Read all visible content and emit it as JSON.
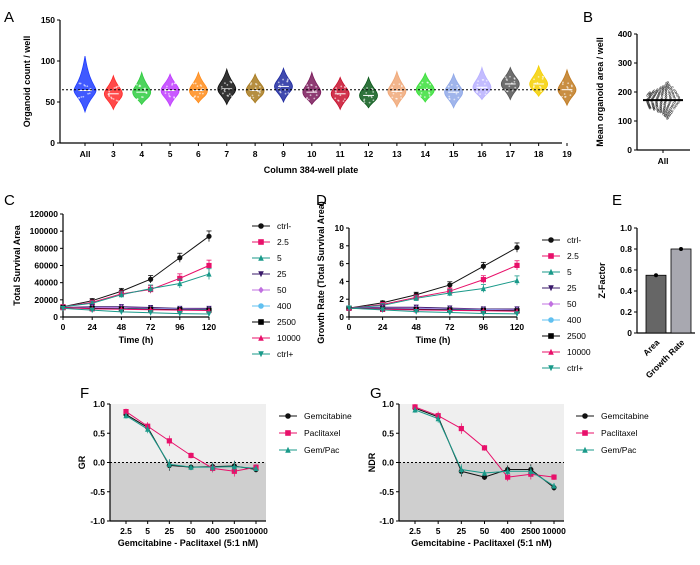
{
  "figure": {
    "panel_labels": [
      "A",
      "B",
      "C",
      "D",
      "E",
      "F",
      "G"
    ]
  },
  "chart_data": [
    {
      "id": "A",
      "type": "violin",
      "xlabel": "Column 384-well plate",
      "ylabel": "Organoid count / well",
      "ylim": [
        0,
        150
      ],
      "yticks": [
        0,
        50,
        100,
        150
      ],
      "reference_line": 65,
      "categories": [
        "All",
        "3",
        "4",
        "5",
        "6",
        "7",
        "8",
        "9",
        "10",
        "11",
        "12",
        "13",
        "14",
        "15",
        "16",
        "17",
        "18",
        "19"
      ],
      "medians": [
        64,
        60,
        62,
        64,
        64,
        66,
        64,
        69,
        62,
        60,
        58,
        63,
        65,
        62,
        68,
        72,
        72,
        65
      ],
      "colors": [
        "#1f3cff",
        "#ff2a2a",
        "#2ecc40",
        "#c03cff",
        "#ff8c1a",
        "#111111",
        "#a87a1e",
        "#1e2aa0",
        "#7a1a5a",
        "#c8102e",
        "#0a5a1a",
        "#f0a878",
        "#3adf3a",
        "#8fa8e8",
        "#b8b0ff",
        "#555555",
        "#f5d000",
        "#c07a20"
      ]
    },
    {
      "id": "B",
      "type": "scatter",
      "xlabel": "",
      "ylabel": "Mean organoid area / well",
      "ylim": [
        0,
        400
      ],
      "yticks": [
        0,
        100,
        200,
        300,
        400
      ],
      "categories": [
        "All"
      ],
      "median": 172
    },
    {
      "id": "C",
      "type": "line",
      "xlabel": "Time (h)",
      "ylabel": "Total Survival Area",
      "x": [
        0,
        24,
        48,
        72,
        96,
        120
      ],
      "ylim": [
        0,
        120000
      ],
      "yticks": [
        0,
        20000,
        40000,
        60000,
        80000,
        100000,
        120000
      ],
      "ytick_labels": [
        "0",
        "20000",
        "40000",
        "60000",
        "80000",
        "100000",
        "120000"
      ],
      "series": [
        {
          "name": "ctrl-",
          "color": "#111111",
          "marker": "circle",
          "values": [
            12000,
            19000,
            30000,
            44000,
            69000,
            94000
          ]
        },
        {
          "name": "2.5",
          "color": "#e8106a",
          "marker": "square",
          "values": [
            12000,
            17000,
            27000,
            32000,
            45000,
            60000
          ]
        },
        {
          "name": "5",
          "color": "#1a9a8a",
          "marker": "triangle",
          "values": [
            12000,
            16000,
            26000,
            33000,
            39000,
            50000
          ]
        },
        {
          "name": "25",
          "color": "#3a1a6a",
          "marker": "tri-down",
          "values": [
            11000,
            12000,
            12000,
            11000,
            10000,
            10000
          ]
        },
        {
          "name": "50",
          "color": "#c070e0",
          "marker": "diamond",
          "values": [
            11000,
            11000,
            11000,
            10000,
            9500,
            9000
          ]
        },
        {
          "name": "400",
          "color": "#60c0f0",
          "marker": "circle",
          "values": [
            11000,
            10000,
            10000,
            9500,
            9000,
            8500
          ]
        },
        {
          "name": "2500",
          "color": "#000000",
          "marker": "square",
          "values": [
            11000,
            10000,
            9500,
            9000,
            8500,
            8000
          ]
        },
        {
          "name": "10000",
          "color": "#e8106a",
          "marker": "triangle",
          "values": [
            11000,
            9500,
            9000,
            8500,
            8000,
            7500
          ]
        },
        {
          "name": "ctrl+",
          "color": "#1a9a8a",
          "marker": "tri-down",
          "values": [
            10000,
            8000,
            6000,
            5000,
            4000,
            3500
          ]
        }
      ]
    },
    {
      "id": "D",
      "type": "line",
      "xlabel": "Time (h)",
      "ylabel": "Growth Rate (Total Survival Area)",
      "x": [
        0,
        24,
        48,
        72,
        96,
        120
      ],
      "ylim": [
        0,
        10
      ],
      "yticks": [
        0,
        2,
        4,
        6,
        8,
        10
      ],
      "ytick_labels": [
        "0",
        "2",
        "4",
        "6",
        "8",
        "10"
      ],
      "series": [
        {
          "name": "ctrl-",
          "color": "#111111",
          "marker": "circle",
          "values": [
            1,
            1.6,
            2.5,
            3.6,
            5.7,
            7.8
          ]
        },
        {
          "name": "2.5",
          "color": "#e8106a",
          "marker": "square",
          "values": [
            1,
            1.4,
            2.2,
            2.9,
            4.2,
            5.8
          ]
        },
        {
          "name": "5",
          "color": "#1a9a8a",
          "marker": "triangle",
          "values": [
            1,
            1.3,
            2.1,
            2.7,
            3.2,
            4.1
          ]
        },
        {
          "name": "25",
          "color": "#3a1a6a",
          "marker": "tri-down",
          "values": [
            1,
            1.1,
            1.1,
            1.0,
            0.9,
            0.9
          ]
        },
        {
          "name": "50",
          "color": "#c070e0",
          "marker": "diamond",
          "values": [
            1,
            1.0,
            1.0,
            0.9,
            0.85,
            0.8
          ]
        },
        {
          "name": "400",
          "color": "#60c0f0",
          "marker": "circle",
          "values": [
            1,
            0.9,
            0.9,
            0.85,
            0.8,
            0.75
          ]
        },
        {
          "name": "2500",
          "color": "#000000",
          "marker": "square",
          "values": [
            1,
            0.9,
            0.85,
            0.8,
            0.75,
            0.7
          ]
        },
        {
          "name": "10000",
          "color": "#e8106a",
          "marker": "triangle",
          "values": [
            1,
            0.85,
            0.8,
            0.75,
            0.7,
            0.65
          ]
        },
        {
          "name": "ctrl+",
          "color": "#1a9a8a",
          "marker": "tri-down",
          "values": [
            1,
            0.8,
            0.6,
            0.5,
            0.4,
            0.35
          ]
        }
      ]
    },
    {
      "id": "E",
      "type": "bar",
      "ylabel": "Z-Factor",
      "categories": [
        "Area",
        "Growth Rate"
      ],
      "values": [
        0.55,
        0.8
      ],
      "colors": [
        "#666666",
        "#a8a8b0"
      ],
      "ylim": [
        0,
        1
      ],
      "yticks": [
        0,
        0.2,
        0.4,
        0.6,
        0.8,
        1.0
      ],
      "ytick_labels": [
        "0",
        "0.2",
        "0.4",
        "0.6",
        "0.8",
        "1.0"
      ]
    },
    {
      "id": "F",
      "type": "line",
      "xlabel": "Gemcitabine - Paclitaxel (5:1 nM)",
      "ylabel": "GR",
      "categories": [
        "2.5",
        "5",
        "25",
        "50",
        "400",
        "2500",
        "10000"
      ],
      "ylim": [
        -1,
        1
      ],
      "yticks": [
        -1,
        -0.5,
        0,
        0.5,
        1
      ],
      "ytick_labels": [
        "-1.0",
        "-0.5",
        "0.0",
        "0.5",
        "1.0"
      ],
      "series": [
        {
          "name": "Gemcitabine",
          "color": "#111111",
          "marker": "circle",
          "values": [
            0.82,
            0.6,
            -0.05,
            -0.08,
            -0.07,
            -0.06,
            -0.12
          ]
        },
        {
          "name": "Paclitaxel",
          "color": "#e8106a",
          "marker": "square",
          "values": [
            0.87,
            0.62,
            0.37,
            0.12,
            -0.1,
            -0.15,
            -0.08
          ]
        },
        {
          "name": "Gem/Pac",
          "color": "#1a9a8a",
          "marker": "triangle",
          "values": [
            0.8,
            0.57,
            -0.03,
            -0.08,
            -0.08,
            -0.07,
            -0.1
          ]
        }
      ]
    },
    {
      "id": "G",
      "type": "line",
      "xlabel": "Gemcitabine - Paclitaxel (5:1 nM)",
      "ylabel": "NDR",
      "categories": [
        "2.5",
        "5",
        "25",
        "50",
        "400",
        "2500",
        "10000"
      ],
      "ylim": [
        -1,
        1
      ],
      "yticks": [
        -1,
        -0.5,
        0,
        0.5,
        1
      ],
      "ytick_labels": [
        "-1.0",
        "-0.5",
        "0.0",
        "0.5",
        "1.0"
      ],
      "series": [
        {
          "name": "Gemcitabine",
          "color": "#111111",
          "marker": "circle",
          "values": [
            0.93,
            0.78,
            -0.15,
            -0.25,
            -0.12,
            -0.12,
            -0.43
          ]
        },
        {
          "name": "Paclitaxel",
          "color": "#e8106a",
          "marker": "square",
          "values": [
            0.95,
            0.8,
            0.58,
            0.25,
            -0.25,
            -0.2,
            -0.25
          ]
        },
        {
          "name": "Gem/Pac",
          "color": "#1a9a8a",
          "marker": "triangle",
          "values": [
            0.9,
            0.75,
            -0.12,
            -0.18,
            -0.15,
            -0.15,
            -0.4
          ]
        }
      ]
    }
  ]
}
